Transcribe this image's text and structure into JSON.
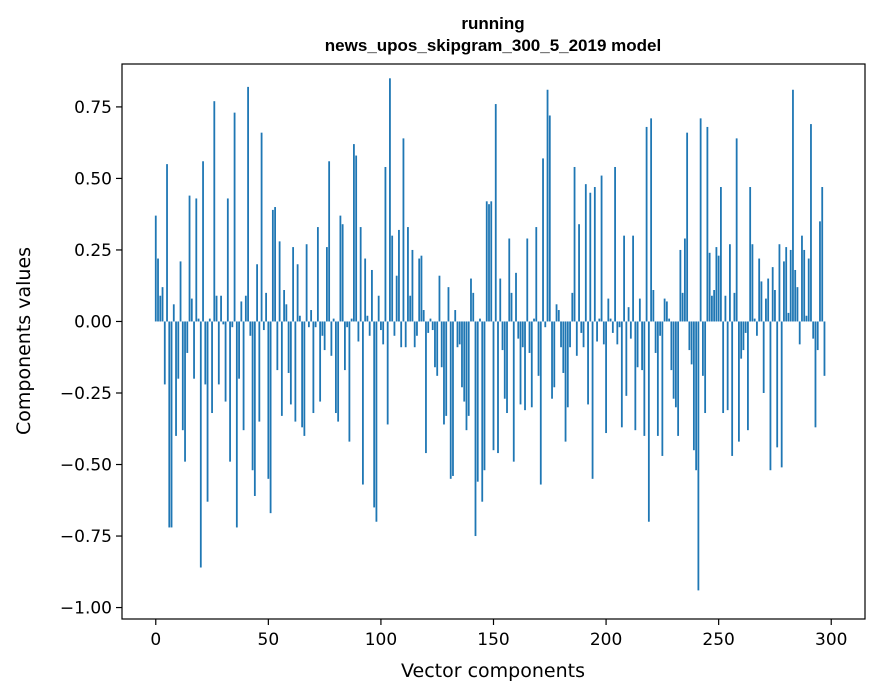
{
  "chart_data": {
    "type": "bar",
    "title_line1": "running",
    "title_line2": "news_upos_skipgram_300_5_2019 model",
    "xlabel": "Vector components",
    "ylabel": "Components values",
    "xlim": [
      -15,
      315
    ],
    "ylim": [
      -1.04,
      0.9
    ],
    "xticks": [
      0,
      50,
      100,
      150,
      200,
      250,
      300
    ],
    "yticks": [
      0.75,
      0.5,
      0.25,
      0.0,
      -0.25,
      -0.5,
      -0.75,
      -1.0
    ],
    "ytick_labels": [
      "0.75",
      "0.50",
      "0.25",
      "0.00",
      "−0.25",
      "−0.50",
      "−0.75",
      "−1.00"
    ],
    "grid": false,
    "color": "#1f77b4",
    "values": [
      0.37,
      0.22,
      0.09,
      0.12,
      -0.22,
      0.55,
      -0.72,
      -0.72,
      0.06,
      -0.4,
      -0.2,
      0.21,
      -0.38,
      -0.49,
      -0.11,
      0.44,
      0.08,
      -0.2,
      0.43,
      0.01,
      -0.86,
      0.56,
      -0.22,
      -0.63,
      0.01,
      -0.32,
      0.77,
      0.09,
      -0.22,
      0.09,
      -0.01,
      -0.28,
      0.43,
      -0.49,
      -0.02,
      0.73,
      -0.72,
      -0.2,
      0.07,
      -0.38,
      0.09,
      0.82,
      -0.05,
      -0.52,
      -0.61,
      0.2,
      -0.35,
      0.66,
      -0.03,
      0.1,
      -0.55,
      -0.67,
      0.39,
      0.4,
      -0.17,
      0.28,
      -0.33,
      0.11,
      0.06,
      -0.18,
      -0.29,
      0.26,
      -0.35,
      0.2,
      0.02,
      -0.37,
      -0.4,
      0.27,
      -0.02,
      0.04,
      -0.32,
      -0.02,
      0.33,
      -0.28,
      -0.05,
      -0.1,
      0.26,
      0.56,
      -0.12,
      0.01,
      -0.32,
      -0.35,
      0.37,
      0.34,
      -0.17,
      -0.02,
      -0.42,
      0.01,
      0.62,
      0.58,
      -0.07,
      0.33,
      -0.57,
      0.22,
      0.02,
      -0.05,
      0.18,
      -0.65,
      -0.7,
      0.09,
      -0.03,
      -0.08,
      0.54,
      -0.36,
      0.85,
      0.3,
      -0.05,
      0.16,
      0.32,
      -0.09,
      0.64,
      -0.09,
      0.33,
      0.09,
      0.25,
      -0.09,
      -0.05,
      0.22,
      0.23,
      0.04,
      -0.46,
      -0.04,
      0.01,
      -0.03,
      -0.16,
      -0.19,
      0.16,
      -0.16,
      -0.36,
      -0.33,
      0.12,
      -0.55,
      -0.54,
      0.04,
      -0.09,
      -0.08,
      -0.23,
      -0.28,
      -0.38,
      -0.33,
      0.15,
      0.1,
      -0.75,
      -0.56,
      0.01,
      -0.63,
      -0.52,
      0.42,
      0.41,
      0.42,
      -0.45,
      0.76,
      -0.46,
      0.15,
      -0.1,
      -0.27,
      -0.32,
      0.29,
      0.1,
      -0.49,
      0.17,
      -0.06,
      -0.29,
      -0.09,
      -0.31,
      0.29,
      -0.11,
      -0.3,
      0.01,
      0.33,
      -0.19,
      -0.57,
      0.57,
      -0.02,
      0.81,
      0.72,
      -0.27,
      -0.23,
      0.06,
      0.04,
      -0.09,
      -0.18,
      -0.42,
      -0.3,
      -0.09,
      0.1,
      0.54,
      -0.12,
      0.34,
      -0.04,
      -0.09,
      0.48,
      -0.29,
      0.45,
      -0.55,
      0.47,
      -0.07,
      0.01,
      0.51,
      -0.08,
      -0.39,
      0.08,
      0.01,
      -0.04,
      0.54,
      -0.08,
      -0.02,
      -0.37,
      0.3,
      -0.26,
      0.05,
      -0.06,
      0.3,
      -0.38,
      -0.16,
      0.08,
      -0.17,
      -0.4,
      0.68,
      -0.7,
      0.71,
      0.11,
      -0.11,
      -0.4,
      -0.05,
      -0.47,
      0.08,
      0.07,
      0.01,
      -0.17,
      -0.27,
      -0.3,
      -0.4,
      0.25,
      0.1,
      0.29,
      0.66,
      -0.1,
      -0.15,
      -0.45,
      -0.52,
      -0.94,
      0.71,
      -0.19,
      -0.32,
      0.68,
      0.24,
      0.09,
      0.11,
      0.26,
      0.23,
      0.47,
      -0.32,
      0.09,
      -0.31,
      0.27,
      -0.47,
      0.1,
      0.64,
      -0.42,
      -0.13,
      -0.1,
      -0.04,
      -0.38,
      0.47,
      0.27,
      0.01,
      -0.05,
      0.22,
      0.14,
      -0.25,
      0.08,
      0.15,
      -0.52,
      0.19,
      0.11,
      -0.44,
      0.27,
      -0.51,
      0.21,
      0.26,
      0.03,
      0.25,
      0.81,
      0.18,
      0.12,
      -0.08,
      0.3,
      0.25,
      0.02,
      0.22,
      0.69,
      -0.06,
      -0.37,
      -0.1,
      0.35,
      0.47,
      -0.19
    ]
  }
}
